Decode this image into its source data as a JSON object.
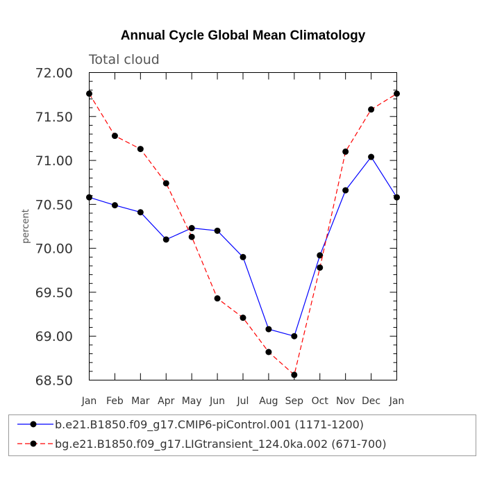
{
  "chart_data": {
    "type": "line",
    "title": "Annual Cycle Global Mean Climatology",
    "subtitle": "Total cloud",
    "xlabel": "",
    "ylabel": "percent",
    "categories": [
      "Jan",
      "Feb",
      "Mar",
      "Apr",
      "May",
      "Jun",
      "Jul",
      "Aug",
      "Sep",
      "Oct",
      "Nov",
      "Dec",
      "Jan"
    ],
    "ylim": [
      68.5,
      72.0
    ],
    "yticks": [
      "68.50",
      "69.00",
      "69.50",
      "70.00",
      "70.50",
      "71.00",
      "71.50",
      "72.00"
    ],
    "legend_position": "bottom",
    "series": [
      {
        "name": "b.e21.B1850.f09_g17.CMIP6-piControl.001 (1171-1200)",
        "color": "#0000ff",
        "style": "solid",
        "values": [
          70.58,
          70.49,
          70.41,
          70.1,
          70.23,
          70.2,
          69.9,
          69.08,
          69.0,
          69.92,
          70.66,
          71.04,
          70.58
        ]
      },
      {
        "name": "bg.e21.B1850.f09_g17.LIGtransient_124.0ka.002 (671-700)",
        "color": "#ff0000",
        "style": "dashed",
        "values": [
          71.76,
          71.28,
          71.13,
          70.74,
          70.13,
          69.43,
          69.21,
          68.82,
          68.56,
          69.78,
          71.1,
          71.58,
          71.76
        ]
      }
    ]
  }
}
